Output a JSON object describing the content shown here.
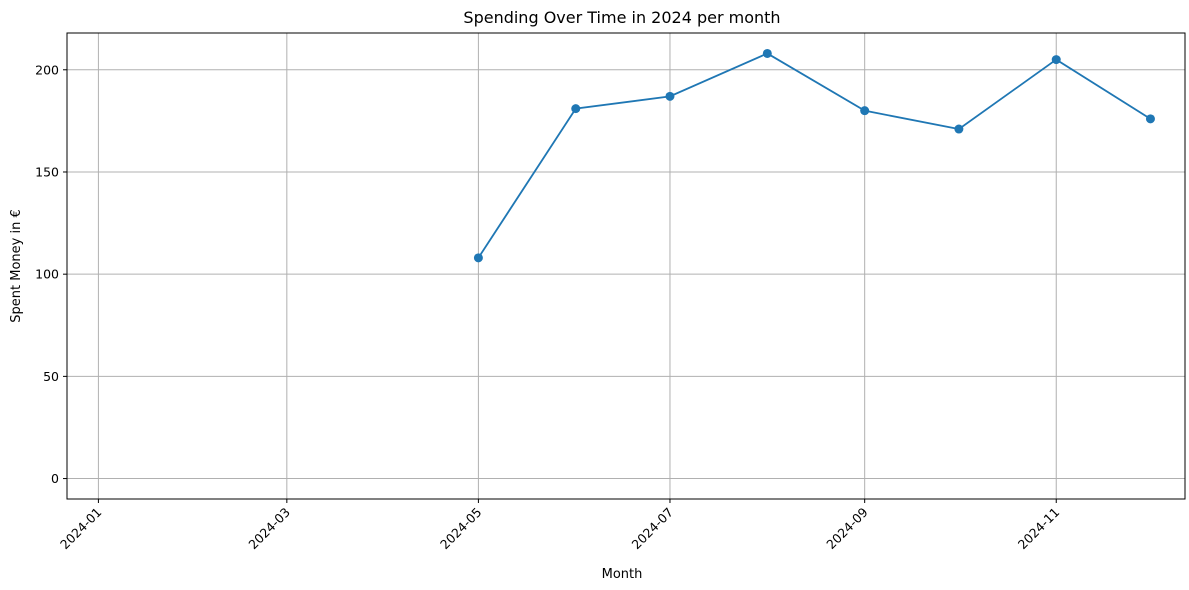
{
  "chart_data": {
    "type": "line",
    "title": "Spending Over Time in 2024 per month",
    "xlabel": "Month",
    "ylabel": "Spent Money in €",
    "x_ticks": [
      "2024-01",
      "2024-03",
      "2024-05",
      "2024-07",
      "2024-09",
      "2024-11"
    ],
    "y_ticks": [
      0,
      50,
      100,
      150,
      200
    ],
    "xlim": [
      "2023-12-22",
      "2024-12-12"
    ],
    "ylim": [
      -10,
      218
    ],
    "grid": true,
    "series": [
      {
        "color": "#1f77b4",
        "marker": "circle",
        "x": [
          "2024-05-01",
          "2024-06-01",
          "2024-07-01",
          "2024-08-01",
          "2024-09-01",
          "2024-10-01",
          "2024-11-01",
          "2024-12-01"
        ],
        "y": [
          108,
          181,
          187,
          208,
          180,
          171,
          205,
          176
        ]
      }
    ]
  }
}
